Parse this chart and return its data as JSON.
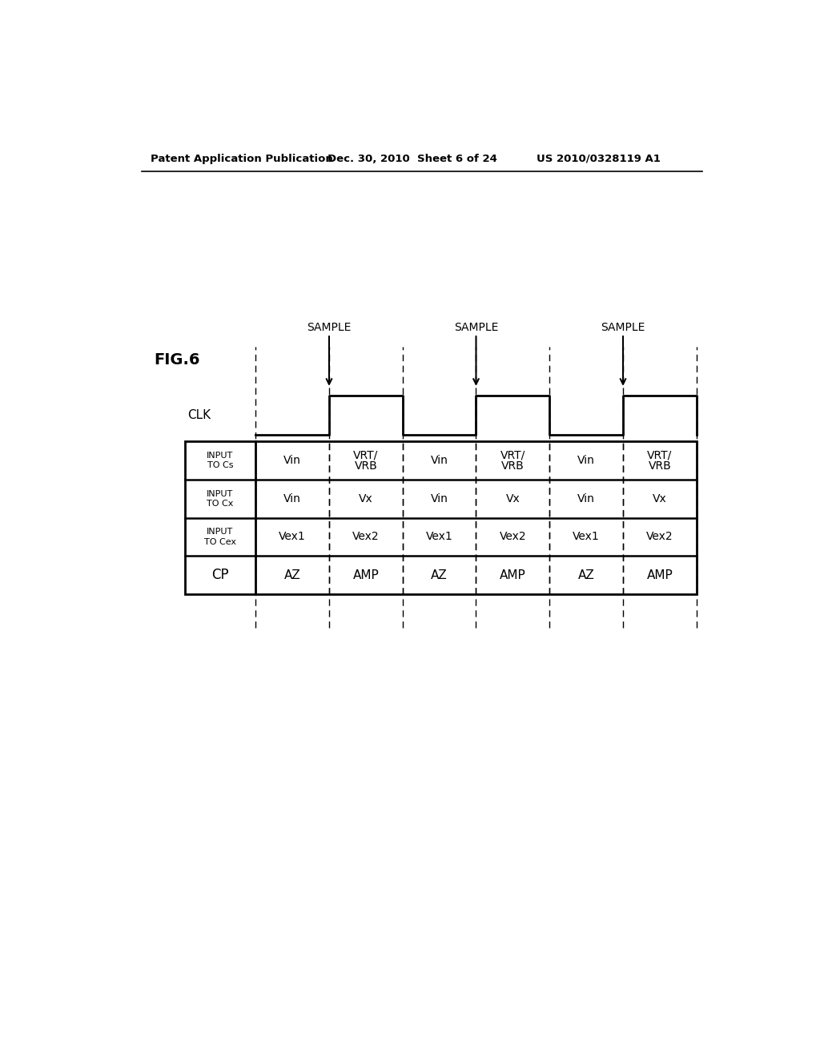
{
  "header_left": "Patent Application Publication",
  "header_mid": "Dec. 30, 2010  Sheet 6 of 24",
  "header_right": "US 2010/0328119 A1",
  "fig_label": "FIG.6",
  "clk_label": "CLK",
  "sample_label": "SAMPLE",
  "background_color": "#ffffff",
  "table_rows": [
    {
      "row_label_line1": "INPUT",
      "row_label_line2": "TO Cs",
      "cells": [
        "Vin",
        "VRT/\nVRB",
        "Vin",
        "VRT/\nVRB",
        "Vin",
        "VRT/\nVRB"
      ]
    },
    {
      "row_label_line1": "INPUT",
      "row_label_line2": "TO Cx",
      "cells": [
        "Vin",
        "Vx",
        "Vin",
        "Vx",
        "Vin",
        "Vx"
      ]
    },
    {
      "row_label_line1": "INPUT",
      "row_label_line2": "TO Cex",
      "cells": [
        "Vex1",
        "Vex2",
        "Vex1",
        "Vex2",
        "Vex1",
        "Vex2"
      ]
    },
    {
      "row_label_line1": "CP",
      "row_label_line2": "",
      "cells": [
        "AZ",
        "AMP",
        "AZ",
        "AMP",
        "AZ",
        "AMP"
      ]
    }
  ]
}
